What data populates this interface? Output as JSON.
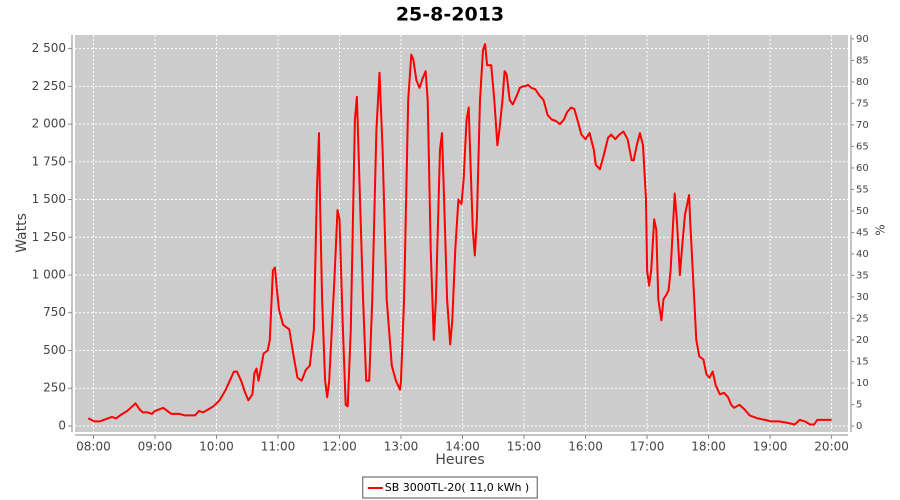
{
  "chart_data": {
    "type": "line",
    "title": "25-8-2013",
    "x_label": "Heures",
    "y_label": "Watts",
    "y2_label": "%",
    "x": [
      "07:55",
      "08:01",
      "08:06",
      "08:14",
      "08:18",
      "08:22",
      "08:26",
      "08:33",
      "08:38",
      "08:41",
      "08:45",
      "08:48",
      "08:53",
      "08:57",
      "09:00",
      "09:04",
      "09:08",
      "09:12",
      "09:16",
      "09:20",
      "09:24",
      "09:29",
      "09:34",
      "09:39",
      "09:43",
      "09:47",
      "09:52",
      "09:57",
      "10:03",
      "10:09",
      "10:13",
      "10:17",
      "10:20",
      "10:24",
      "10:28",
      "10:31",
      "10:35",
      "10:37",
      "10:39",
      "10:41",
      "10:43",
      "10:46",
      "10:50",
      "10:52",
      "10:55",
      "10:57",
      "10:59",
      "11:01",
      "11:05",
      "11:11",
      "11:15",
      "11:19",
      "11:23",
      "11:27",
      "11:31",
      "11:35",
      "11:38",
      "11:40",
      "11:41",
      "11:43",
      "11:46",
      "11:48",
      "11:50",
      "11:55",
      "11:58",
      "12:00",
      "12:03",
      "12:06",
      "12:08",
      "12:11",
      "12:15",
      "12:17",
      "12:20",
      "12:23",
      "12:26",
      "12:29",
      "12:32",
      "12:36",
      "12:39",
      "12:42",
      "12:46",
      "12:51",
      "12:55",
      "12:59",
      "13:00",
      "13:03",
      "13:07",
      "13:10",
      "13:12",
      "13:15",
      "13:18",
      "13:21",
      "13:24",
      "13:26",
      "13:29",
      "13:32",
      "13:34",
      "13:38",
      "13:40",
      "13:42",
      "13:45",
      "13:48",
      "13:50",
      "13:53",
      "13:56",
      "13:59",
      "14:01",
      "14:04",
      "14:06",
      "14:08",
      "14:10",
      "14:12",
      "14:14",
      "14:17",
      "14:20",
      "14:22",
      "14:24",
      "14:28",
      "14:31",
      "14:34",
      "14:36",
      "14:39",
      "14:41",
      "14:43",
      "14:46",
      "14:49",
      "14:53",
      "14:56",
      "14:59",
      "15:01",
      "15:04",
      "15:07",
      "15:11",
      "15:15",
      "15:19",
      "15:23",
      "15:27",
      "15:31",
      "15:35",
      "15:39",
      "15:42",
      "15:46",
      "15:49",
      "15:52",
      "15:56",
      "16:00",
      "16:04",
      "16:08",
      "16:10",
      "16:14",
      "16:18",
      "16:22",
      "16:25",
      "16:29",
      "16:33",
      "16:37",
      "16:41",
      "16:45",
      "16:47",
      "16:50",
      "16:53",
      "16:56",
      "16:59",
      "17:00",
      "17:02",
      "17:04",
      "17:07",
      "17:09",
      "17:11",
      "17:14",
      "17:16",
      "17:19",
      "17:21",
      "17:23",
      "17:27",
      "17:29",
      "17:32",
      "17:34",
      "17:37",
      "17:41",
      "17:42",
      "17:45",
      "17:48",
      "17:51",
      "17:55",
      "17:58",
      "18:01",
      "18:04",
      "18:07",
      "18:11",
      "18:15",
      "18:19",
      "18:22",
      "18:25",
      "18:30",
      "18:35",
      "18:40",
      "18:48",
      "18:55",
      "19:01",
      "19:09",
      "19:17",
      "19:24",
      "19:29",
      "19:34",
      "19:39",
      "19:43",
      "19:46",
      "19:53",
      "20:00"
    ],
    "series": [
      {
        "name": "SB 3000TL-20( 11,0 kWh )",
        "color": "#ff0000",
        "values": [
          50,
          30,
          30,
          50,
          60,
          50,
          70,
          100,
          130,
          150,
          110,
          90,
          90,
          80,
          100,
          110,
          120,
          100,
          80,
          80,
          80,
          70,
          70,
          70,
          100,
          90,
          110,
          130,
          170,
          240,
          300,
          360,
          360,
          300,
          220,
          170,
          210,
          350,
          380,
          300,
          370,
          480,
          500,
          570,
          1030,
          1050,
          900,
          770,
          670,
          640,
          470,
          320,
          300,
          370,
          400,
          640,
          1560,
          1940,
          1500,
          840,
          300,
          190,
          300,
          970,
          1430,
          1370,
          700,
          140,
          130,
          640,
          2030,
          2180,
          1500,
          840,
          300,
          300,
          840,
          1960,
          2340,
          1830,
          840,
          400,
          300,
          240,
          300,
          840,
          2160,
          2460,
          2430,
          2290,
          2240,
          2300,
          2350,
          2160,
          1170,
          570,
          840,
          1830,
          1940,
          1500,
          840,
          540,
          700,
          1170,
          1500,
          1470,
          1630,
          2030,
          2110,
          1700,
          1300,
          1130,
          1370,
          2160,
          2490,
          2530,
          2390,
          2390,
          2160,
          1860,
          1960,
          2160,
          2350,
          2330,
          2160,
          2130,
          2190,
          2240,
          2250,
          2250,
          2260,
          2240,
          2230,
          2190,
          2160,
          2060,
          2030,
          2020,
          2000,
          2030,
          2080,
          2110,
          2100,
          2030,
          1930,
          1900,
          1940,
          1830,
          1730,
          1700,
          1800,
          1910,
          1930,
          1900,
          1930,
          1950,
          1900,
          1760,
          1760,
          1860,
          1940,
          1860,
          1500,
          1030,
          930,
          1030,
          1370,
          1300,
          840,
          700,
          840,
          870,
          900,
          1030,
          1540,
          1370,
          1000,
          1170,
          1400,
          1530,
          1370,
          970,
          570,
          460,
          440,
          340,
          320,
          360,
          270,
          210,
          220,
          190,
          140,
          120,
          140,
          110,
          70,
          50,
          40,
          30,
          30,
          20,
          10,
          40,
          30,
          10,
          10,
          40,
          40,
          40
        ]
      }
    ],
    "xlim": [
      "07:42",
      "20:16"
    ],
    "xticks": [
      "08:00",
      "09:00",
      "10:00",
      "11:00",
      "12:00",
      "13:00",
      "14:00",
      "15:00",
      "16:00",
      "17:00",
      "18:00",
      "19:00",
      "20:00"
    ],
    "ylim": [
      -40,
      2590
    ],
    "yticks": [
      0,
      250,
      500,
      750,
      {
        "value": 1000,
        "label": "1 000"
      },
      {
        "value": 1250,
        "label": "1 250"
      },
      {
        "value": 1500,
        "label": "1 500"
      },
      {
        "value": 1750,
        "label": "1 750"
      },
      {
        "value": 2000,
        "label": "2 000"
      },
      {
        "value": 2250,
        "label": "2 250"
      },
      {
        "value": 2500,
        "label": "2 500"
      }
    ],
    "y2lim": [
      -1.4,
      90.9
    ],
    "y2ticks": [
      0,
      5,
      10,
      15,
      20,
      25,
      30,
      35,
      40,
      45,
      50,
      55,
      60,
      65,
      70,
      75,
      80,
      85,
      90
    ],
    "grid": true,
    "plot_background": "#cccccc",
    "legend": "bottom"
  }
}
